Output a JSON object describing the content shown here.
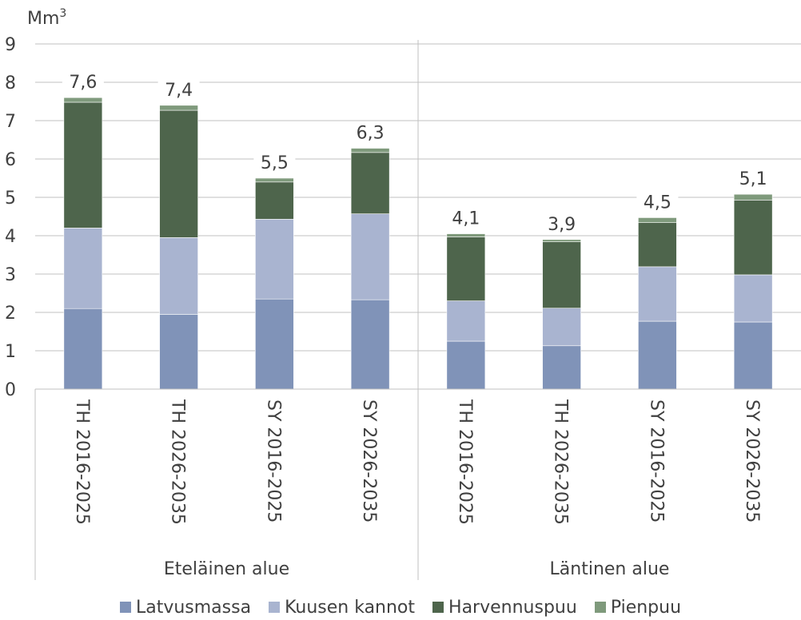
{
  "chart_data": {
    "type": "bar",
    "stacked": true,
    "yunit": "Mm",
    "yunit_sup": "3",
    "ylim": [
      0,
      9
    ],
    "yticks": [
      "0",
      "1",
      "2",
      "3",
      "4",
      "5",
      "6",
      "7",
      "8",
      "9"
    ],
    "grid": true,
    "legend_position": "bottom",
    "groups": [
      {
        "label": "Eteläinen alue",
        "categories": [
          "TH 2016-2025",
          "TH 2026-2035",
          "SY 2016-2025",
          "SY 2026-2035"
        ]
      },
      {
        "label": "Läntinen alue",
        "categories": [
          "TH 2016-2025",
          "TH 2026-2035",
          "SY 2016-2025",
          "SY 2026-2035"
        ]
      }
    ],
    "series": [
      {
        "name": "Latvusmassa",
        "color": "#8093b8",
        "values": [
          2.1,
          1.95,
          2.35,
          2.33,
          1.25,
          1.13,
          1.77,
          1.75
        ]
      },
      {
        "name": "Kuusen kannot",
        "color": "#a9b4d0",
        "values": [
          2.1,
          2.0,
          2.08,
          2.24,
          1.05,
          0.98,
          1.42,
          1.23
        ]
      },
      {
        "name": "Harvennuspuu",
        "color": "#4e654c",
        "values": [
          3.28,
          3.32,
          0.97,
          1.6,
          1.67,
          1.73,
          1.15,
          1.95
        ]
      },
      {
        "name": "Pienpuu",
        "color": "#7f9a7c",
        "values": [
          0.12,
          0.13,
          0.1,
          0.11,
          0.08,
          0.06,
          0.13,
          0.15
        ]
      }
    ],
    "totals": [
      "7,6",
      "7,4",
      "5,5",
      "6,3",
      "4,1",
      "3,9",
      "4,5",
      "5,1"
    ]
  }
}
